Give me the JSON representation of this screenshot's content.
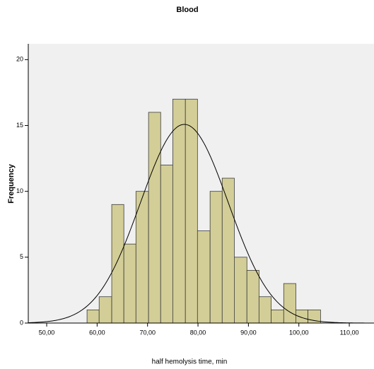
{
  "chart_data": {
    "type": "histogram",
    "title": "Blood",
    "x_label": "half hemolysis time, min",
    "y_label": "Frequency",
    "bins": [
      58.0,
      60.4,
      62.9,
      65.3,
      67.7,
      70.2,
      72.6,
      75.0,
      77.5,
      79.9,
      82.4,
      84.8,
      87.2,
      89.7,
      92.1,
      94.5,
      97.0,
      99.4,
      101.8,
      104.3
    ],
    "counts": [
      1,
      2,
      9,
      6,
      10,
      16,
      12,
      17,
      17,
      7,
      10,
      11,
      5,
      4,
      2,
      1,
      3,
      1,
      1
    ],
    "color": "#d3ce97",
    "edge_color": "#3c3c3c",
    "background": "#f0f0f0",
    "normal_curve": {
      "mean": 77.3,
      "sd": 8.7
    },
    "xlim": [
      46.35,
      114.9
    ],
    "xticks": [
      {
        "value": 50,
        "label": "50,00"
      },
      {
        "value": 60,
        "label": "60,00"
      },
      {
        "value": 70,
        "label": "70,00"
      },
      {
        "value": 80,
        "label": "80,00"
      },
      {
        "value": 90,
        "label": "90,00"
      },
      {
        "value": 100,
        "label": "100,00"
      },
      {
        "value": 110,
        "label": "110,00"
      }
    ],
    "ylim": [
      0,
      21.2
    ],
    "yticks": [
      0,
      5,
      10,
      15,
      20
    ]
  }
}
